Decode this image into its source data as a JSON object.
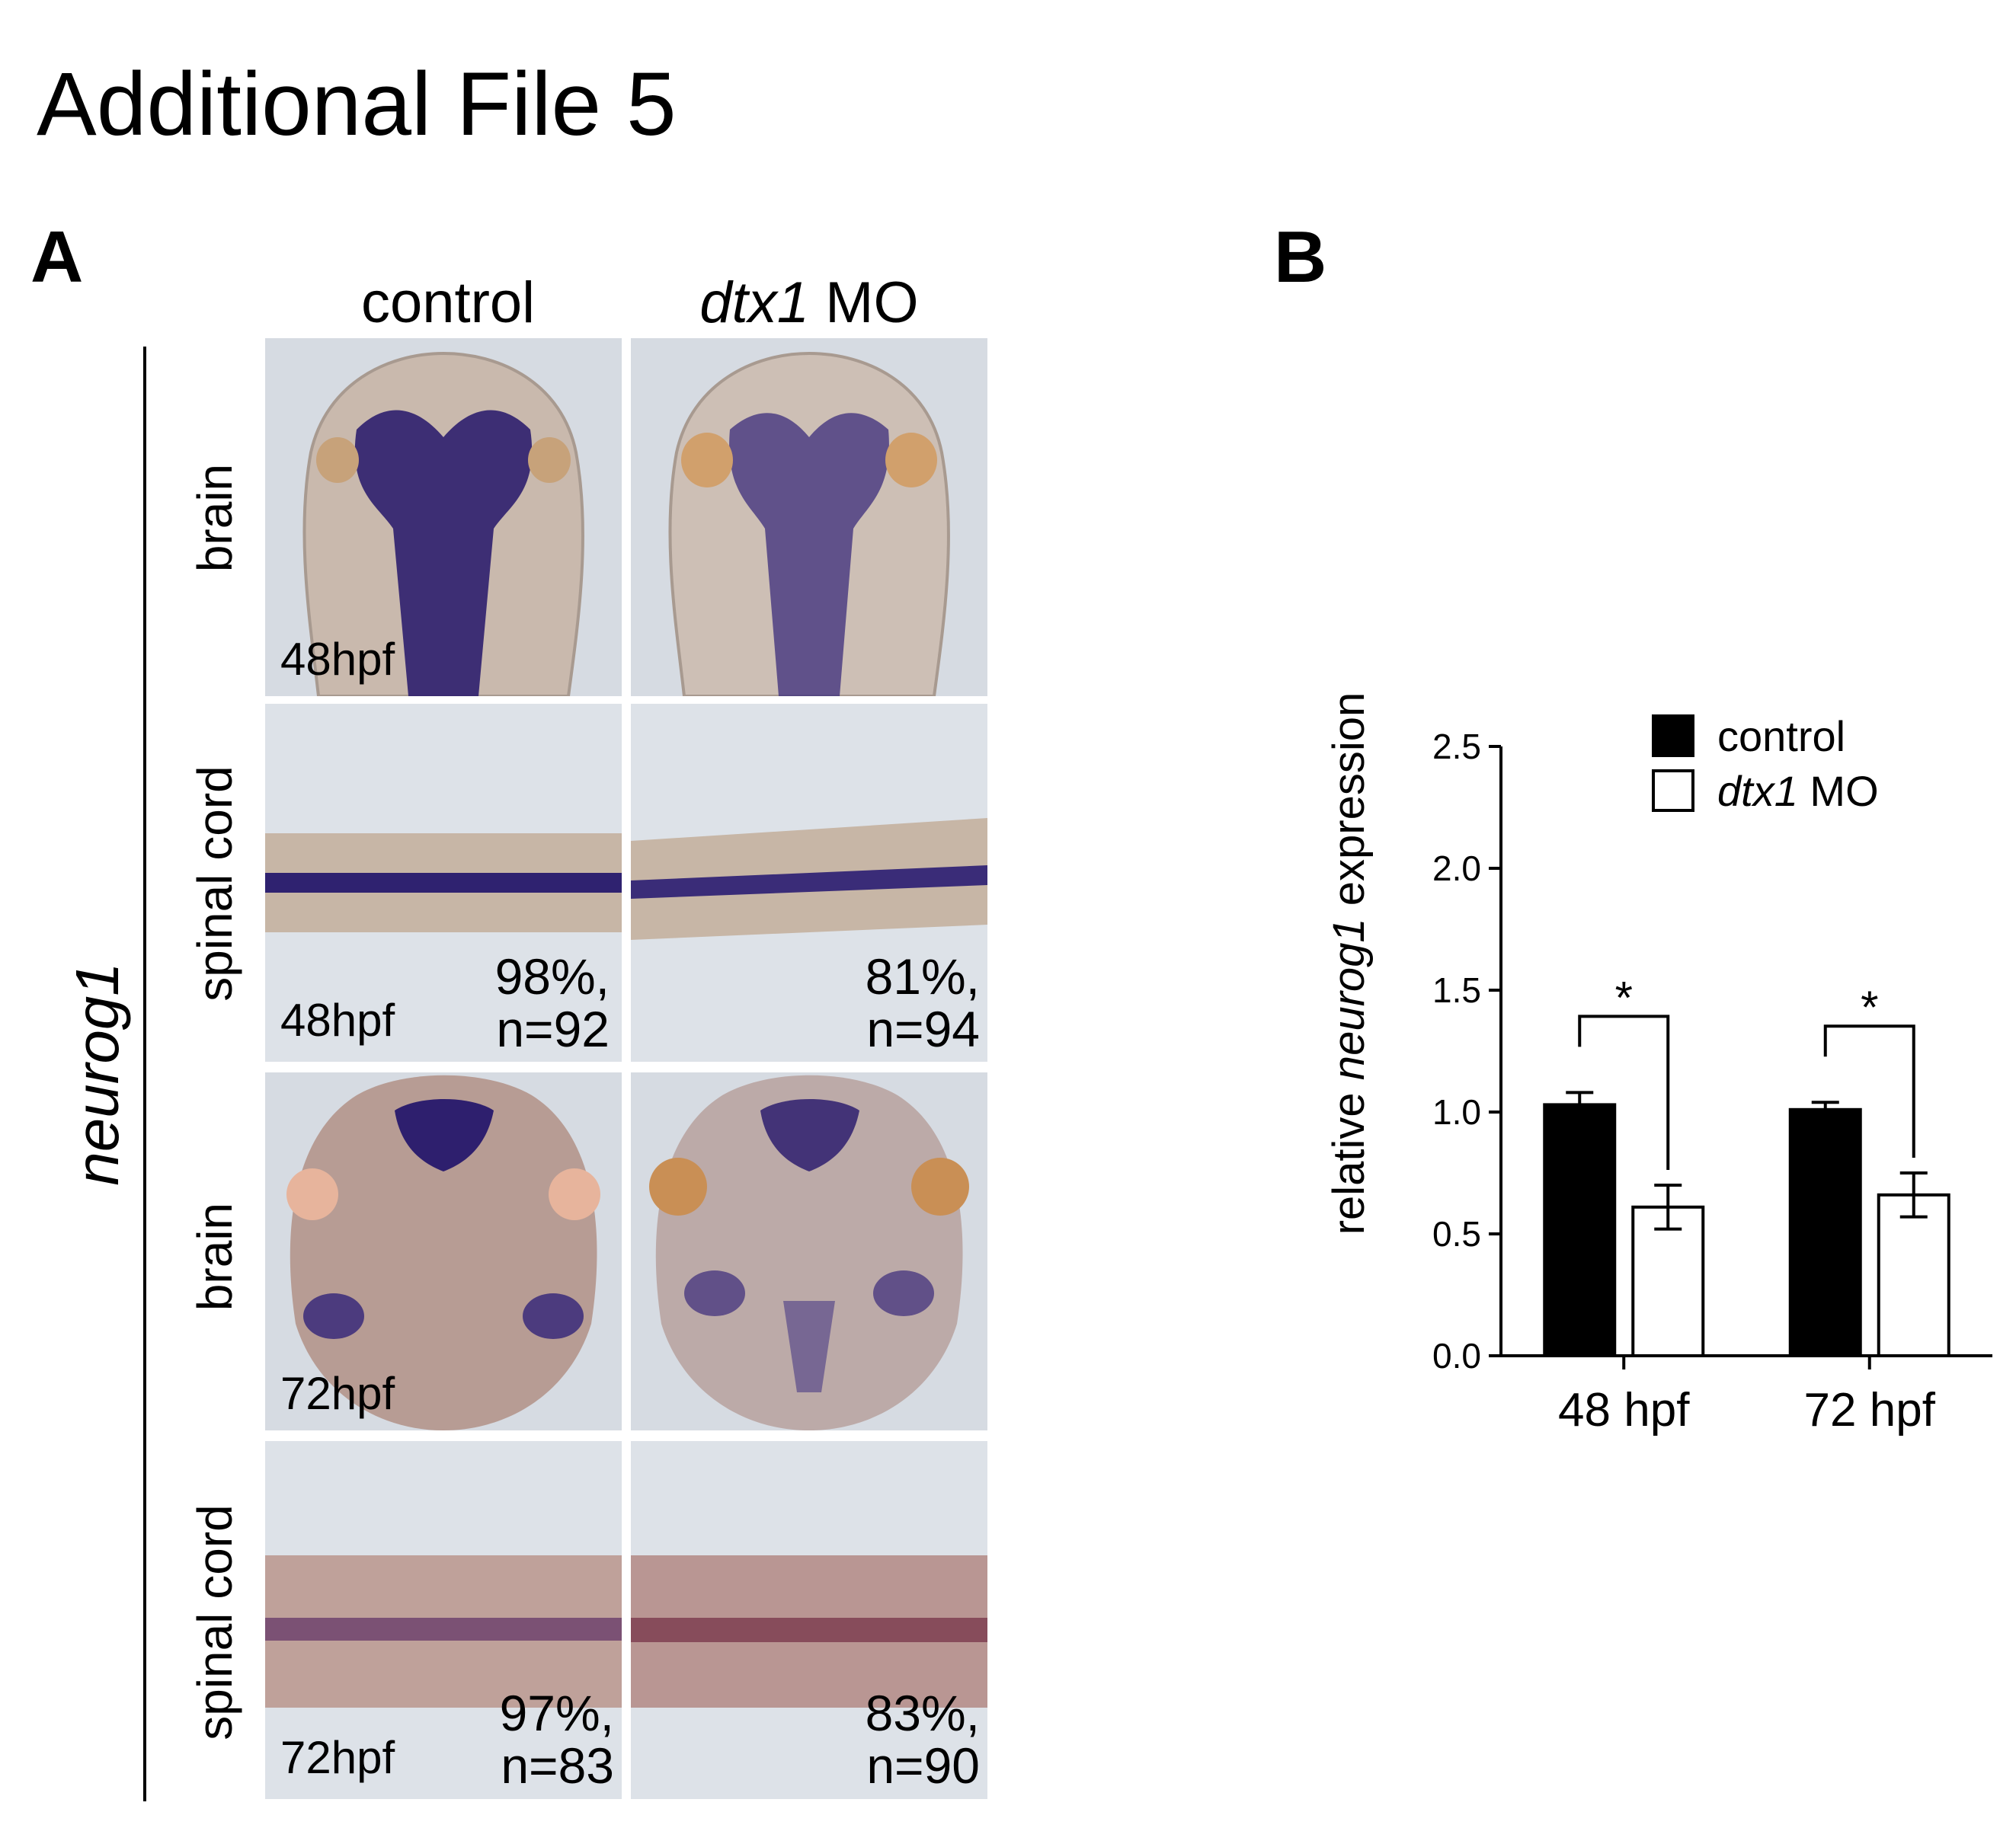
{
  "title": "Additional File 5",
  "panel_a": {
    "letter": "A",
    "gene": "neurog1",
    "columns": [
      {
        "label_italic": "",
        "label_rest": "control"
      },
      {
        "label_italic": "dtx1",
        "label_rest": " MO"
      }
    ],
    "rows": [
      {
        "label": "brain",
        "stage": "48hpf",
        "stats": [
          "",
          ""
        ]
      },
      {
        "label": "spinal cord",
        "stage": "48hpf",
        "stats": [
          "98%,\nn=92",
          "81%,\nn=94"
        ]
      },
      {
        "label": "brain",
        "stage": "72hpf",
        "stats": [
          "",
          ""
        ]
      },
      {
        "label": "spinal cord",
        "stage": "72hpf",
        "stats": [
          "97%,\nn=83",
          "83%,\nn=90"
        ]
      }
    ],
    "colors": {
      "stain": "#3a2a7a",
      "background": "#d6dbe2",
      "tissue": "#b8a596"
    }
  },
  "panel_b": {
    "letter": "B",
    "legend": [
      {
        "italic": "",
        "rest": "control",
        "fill": "#000000"
      },
      {
        "italic": "dtx1",
        "rest": " MO",
        "fill": "#ffffff"
      }
    ],
    "ylabel": {
      "before": "relative ",
      "italic": "neurog1",
      "after": " expression"
    }
  },
  "chart_data": {
    "type": "bar",
    "categories": [
      "48 hpf",
      "72 hpf"
    ],
    "series": [
      {
        "name": "control",
        "values": [
          1.03,
          1.01
        ],
        "errors": [
          0.05,
          0.03
        ],
        "color": "#000000"
      },
      {
        "name": "dtx1 MO",
        "values": [
          0.61,
          0.66
        ],
        "errors": [
          0.09,
          0.09
        ],
        "color": "#ffffff"
      }
    ],
    "significance": [
      "*",
      "*"
    ],
    "ylim": [
      0,
      2.5
    ],
    "yticks": [
      "0.0",
      "0.5",
      "1.0",
      "1.5",
      "2.0",
      "2.5"
    ],
    "xlabel": "",
    "ylabel": "relative neurog1 expression",
    "legend_position": "top-right"
  }
}
